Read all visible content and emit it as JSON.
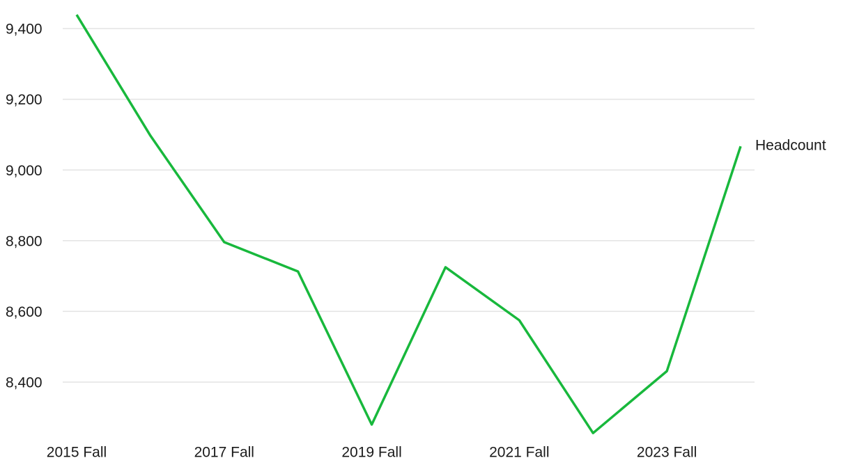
{
  "chart_data": {
    "type": "line",
    "categories": [
      "2015 Fall",
      null,
      "2017 Fall",
      null,
      "2019 Fall",
      null,
      "2021 Fall",
      null,
      "2023 Fall",
      null
    ],
    "series": [
      {
        "name": "Headcount",
        "color": "#18b83c",
        "values": [
          9439,
          9097,
          8796,
          8713,
          8280,
          8725,
          8575,
          8256,
          8431,
          9067
        ]
      }
    ],
    "ylim": [
      8240,
      9450
    ],
    "yticks": [
      {
        "value": 8400,
        "label": "8,400"
      },
      {
        "value": 8600,
        "label": "8,600"
      },
      {
        "value": 8800,
        "label": "8,800"
      },
      {
        "value": 9000,
        "label": "9,000"
      },
      {
        "value": 9200,
        "label": "9,200"
      },
      {
        "value": 9400,
        "label": "9,400"
      }
    ],
    "grid": true
  }
}
